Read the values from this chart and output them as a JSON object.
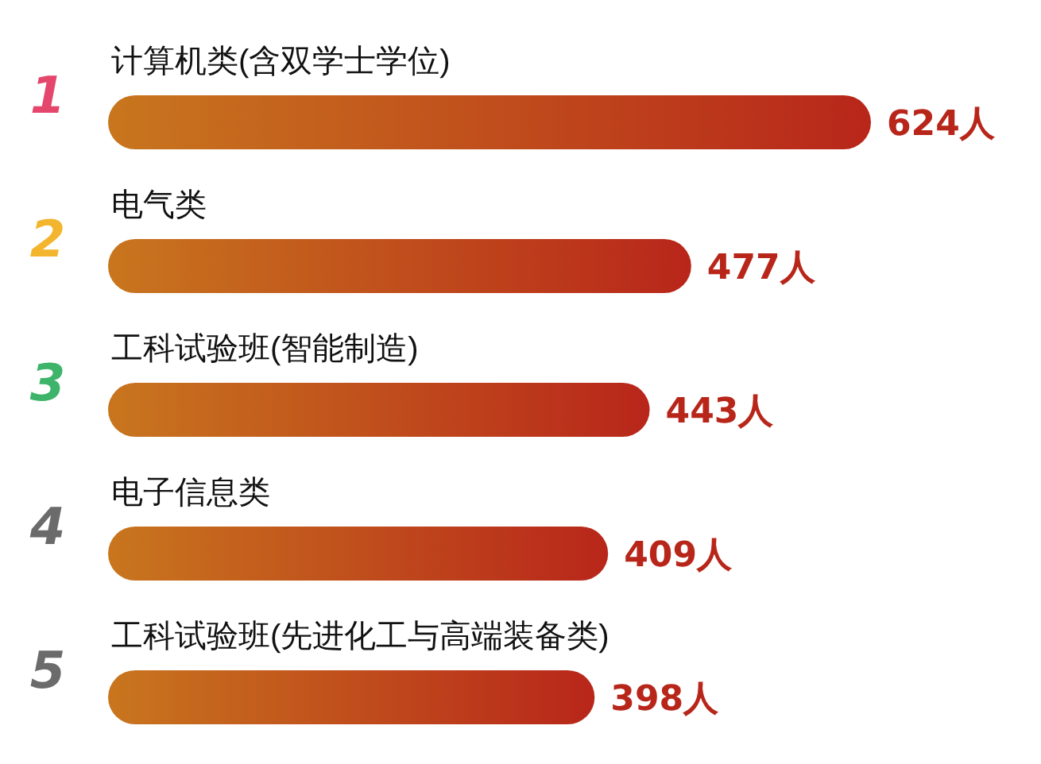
{
  "chart_data": {
    "type": "bar",
    "orientation": "horizontal",
    "categories": [
      "计算机类(含双学士学位)",
      "电气类",
      "工科试验班(智能制造)",
      "电子信息类",
      "工科试验班(先进化工与高端装备类)"
    ],
    "series": [
      {
        "color": "#b8261a",
        "values": [
          624,
          477,
          443,
          409,
          398
        ],
        "value_labels": [
          "624人",
          "477人",
          "443人",
          "409人",
          "398人"
        ]
      }
    ],
    "annotations": [
      "1",
      "2",
      "3",
      "4",
      "5"
    ],
    "grid": false
  }
}
